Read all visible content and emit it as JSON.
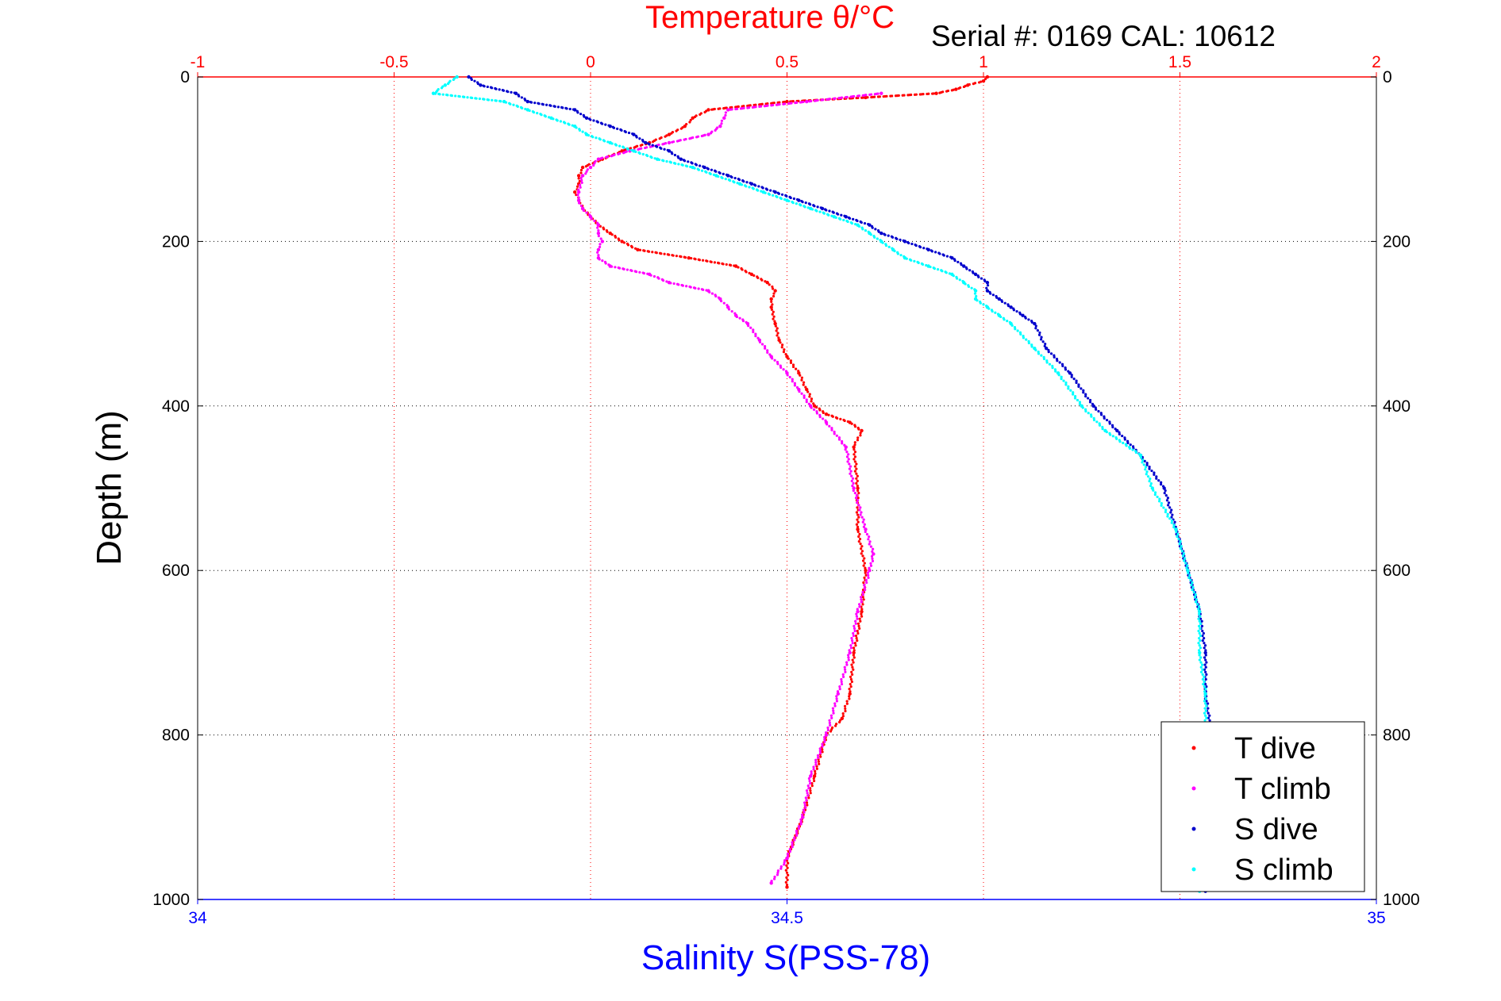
{
  "chart_data": {
    "type": "scatter",
    "title": "Temperature θ/°C",
    "subtitle": "Serial #: 0169 CAL: 10612",
    "ylabel": "Depth (m)",
    "xlabel": "Salinity S(PSS-78)",
    "temperature_axis": {
      "label": "Temperature θ/°C",
      "range": [
        -1,
        2
      ],
      "ticks": [
        -1,
        -0.5,
        0,
        0.5,
        1,
        1.5,
        2
      ],
      "tick_labels": [
        "-1",
        "-0.5",
        "0",
        "0.5",
        "1",
        "1.5",
        "2"
      ],
      "color": "#ff0000"
    },
    "salinity_axis": {
      "label": "Salinity S(PSS-78)",
      "range": [
        34,
        35
      ],
      "ticks": [
        34,
        34.5,
        35
      ],
      "tick_labels": [
        "34",
        "34.5",
        "35"
      ],
      "color": "#0000ff"
    },
    "depth_axis": {
      "label": "Depth (m)",
      "range": [
        0,
        1000
      ],
      "reversed": true,
      "ticks": [
        0,
        200,
        400,
        600,
        800,
        1000
      ],
      "tick_labels": [
        "0",
        "200",
        "400",
        "600",
        "800",
        "1000"
      ]
    },
    "grid": true,
    "legend_position": "bottom-right",
    "series": [
      {
        "name": "T dive",
        "axis": "temperature",
        "color": "#ff0000",
        "depth": [
          0,
          5,
          10,
          15,
          20,
          25,
          30,
          40,
          50,
          60,
          70,
          80,
          90,
          100,
          110,
          120,
          130,
          140,
          150,
          160,
          170,
          180,
          190,
          200,
          210,
          220,
          230,
          240,
          250,
          260,
          270,
          280,
          300,
          320,
          340,
          360,
          380,
          400,
          410,
          420,
          430,
          450,
          500,
          550,
          600,
          650,
          700,
          750,
          780,
          800,
          850,
          900,
          950,
          985
        ],
        "values": [
          1.01,
          1.0,
          0.96,
          0.93,
          0.88,
          0.7,
          0.5,
          0.3,
          0.26,
          0.24,
          0.2,
          0.15,
          0.08,
          0.03,
          -0.02,
          -0.03,
          -0.03,
          -0.04,
          -0.03,
          -0.02,
          0.0,
          0.02,
          0.05,
          0.08,
          0.12,
          0.25,
          0.37,
          0.41,
          0.45,
          0.47,
          0.46,
          0.46,
          0.47,
          0.48,
          0.5,
          0.53,
          0.55,
          0.57,
          0.6,
          0.66,
          0.69,
          0.67,
          0.68,
          0.68,
          0.7,
          0.69,
          0.67,
          0.66,
          0.64,
          0.6,
          0.57,
          0.54,
          0.5,
          0.5
        ]
      },
      {
        "name": "T climb",
        "axis": "temperature",
        "color": "#ff00ff",
        "depth": [
          20,
          30,
          40,
          50,
          60,
          70,
          80,
          90,
          100,
          110,
          120,
          140,
          150,
          160,
          170,
          180,
          190,
          200,
          210,
          220,
          230,
          240,
          250,
          260,
          270,
          280,
          290,
          300,
          320,
          340,
          360,
          380,
          400,
          420,
          450,
          500,
          550,
          580,
          600,
          650,
          700,
          750,
          800,
          850,
          900,
          950,
          980
        ],
        "values": [
          0.74,
          0.55,
          0.35,
          0.34,
          0.33,
          0.3,
          0.2,
          0.1,
          0.02,
          0.0,
          -0.02,
          -0.03,
          -0.03,
          -0.02,
          0.0,
          0.02,
          0.02,
          0.03,
          0.02,
          0.02,
          0.05,
          0.15,
          0.2,
          0.3,
          0.33,
          0.35,
          0.37,
          0.4,
          0.43,
          0.46,
          0.5,
          0.53,
          0.56,
          0.6,
          0.65,
          0.67,
          0.7,
          0.72,
          0.71,
          0.68,
          0.66,
          0.63,
          0.6,
          0.56,
          0.54,
          0.5,
          0.46
        ]
      },
      {
        "name": "S dive",
        "axis": "salinity",
        "color": "#0000cc",
        "depth": [
          0,
          10,
          20,
          30,
          40,
          50,
          60,
          70,
          80,
          90,
          100,
          110,
          120,
          130,
          140,
          150,
          160,
          170,
          180,
          190,
          200,
          210,
          220,
          230,
          240,
          250,
          260,
          270,
          280,
          290,
          300,
          330,
          360,
          400,
          430,
          460,
          500,
          550,
          600,
          650,
          700,
          750,
          800,
          850,
          900,
          950,
          990
        ],
        "values": [
          34.23,
          34.24,
          34.27,
          34.28,
          34.32,
          34.33,
          34.35,
          34.37,
          34.38,
          34.4,
          34.41,
          34.43,
          34.45,
          34.47,
          34.49,
          34.51,
          34.53,
          34.55,
          34.57,
          34.58,
          34.6,
          34.62,
          34.64,
          34.65,
          34.66,
          34.67,
          34.67,
          34.68,
          34.69,
          34.7,
          34.71,
          34.72,
          34.74,
          34.76,
          34.78,
          34.8,
          34.82,
          34.83,
          34.84,
          34.85,
          34.855,
          34.855,
          34.86,
          34.86,
          34.86,
          34.86,
          34.855
        ]
      },
      {
        "name": "S climb",
        "axis": "salinity",
        "color": "#00ffff",
        "depth": [
          0,
          10,
          20,
          30,
          40,
          50,
          60,
          70,
          80,
          90,
          100,
          110,
          120,
          130,
          140,
          150,
          160,
          170,
          180,
          190,
          200,
          210,
          220,
          230,
          240,
          250,
          260,
          270,
          280,
          290,
          300,
          330,
          360,
          400,
          430,
          460,
          500,
          550,
          600,
          650,
          700,
          750,
          800,
          850,
          900,
          950,
          990
        ],
        "values": [
          34.22,
          34.21,
          34.2,
          34.26,
          34.28,
          34.3,
          34.32,
          34.33,
          34.35,
          34.37,
          34.39,
          34.42,
          34.44,
          34.46,
          34.48,
          34.5,
          34.52,
          34.54,
          34.56,
          34.57,
          34.58,
          34.59,
          34.6,
          34.62,
          34.64,
          34.65,
          34.66,
          34.66,
          34.67,
          34.68,
          34.69,
          34.71,
          34.73,
          34.75,
          34.77,
          34.8,
          34.81,
          34.83,
          34.84,
          34.85,
          34.85,
          34.855,
          34.855,
          34.86,
          34.86,
          34.855,
          34.85
        ]
      }
    ]
  }
}
